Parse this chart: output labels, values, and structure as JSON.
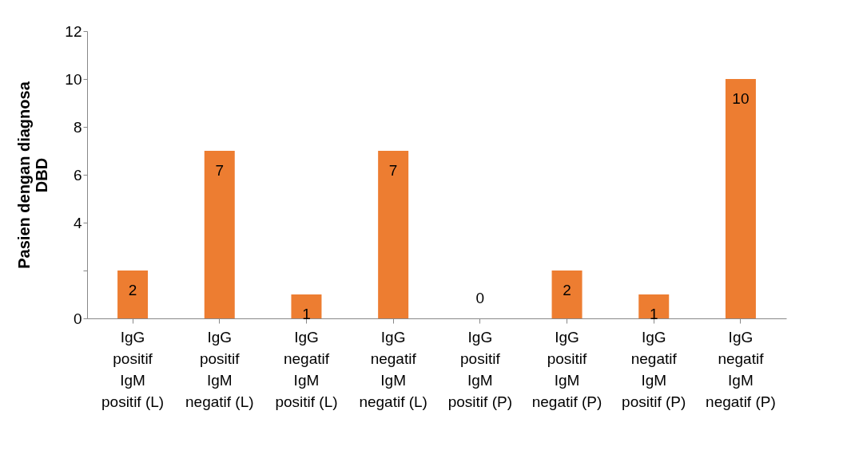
{
  "chart_data": {
    "type": "bar",
    "ylabel": "Pasien dengan diagnosa\nDBD",
    "categories": [
      "IgG\npositif\nIgM\npositif (L)",
      "IgG\npositif\nIgM\nnegatif (L)",
      "IgG\nnegatif\nIgM\npositif (L)",
      "IgG\nnegatif\nIgM\nnegatif (L)",
      "IgG\npositif\nIgM\npositif (P)",
      "IgG\npositif\nIgM\nnegatif (P)",
      "IgG\nnegatif\nIgM\npositif (P)",
      "IgG\nnegatif\nIgM\nnegatif (P)"
    ],
    "values": [
      2,
      7,
      1,
      7,
      0,
      2,
      1,
      10
    ],
    "color": "#ed7d31",
    "data_labels": true,
    "ylim": [
      0,
      12
    ],
    "yticks": [
      0,
      {
        "value": 2,
        "label": null
      },
      4,
      6,
      8,
      10,
      12
    ],
    "grid": false,
    "legend": false
  }
}
